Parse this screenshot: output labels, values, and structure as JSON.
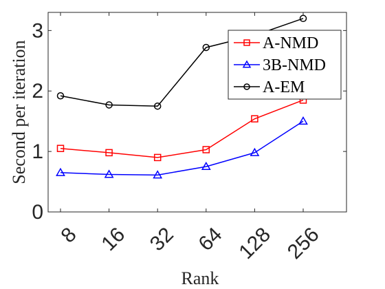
{
  "chart_data": {
    "type": "line",
    "title": "",
    "xlabel": "Rank",
    "ylabel": "Second per iteration",
    "categories": [
      "8",
      "16",
      "32",
      "64",
      "128",
      "256"
    ],
    "ylim": [
      0,
      3.3
    ],
    "yticks": [
      0,
      1,
      2,
      3
    ],
    "grid": false,
    "legend_position": "top-right",
    "series": [
      {
        "name": "A-NMD",
        "color": "#ff0000",
        "marker": "square",
        "values": [
          1.05,
          0.98,
          0.9,
          1.03,
          1.54,
          1.85
        ]
      },
      {
        "name": "3B-NMD",
        "color": "#0000ff",
        "marker": "triangle",
        "values": [
          0.65,
          0.62,
          0.61,
          0.75,
          0.98,
          1.5
        ]
      },
      {
        "name": "A-EM",
        "color": "#000000",
        "marker": "circle",
        "values": [
          1.92,
          1.77,
          1.75,
          2.72,
          2.92,
          3.2
        ]
      }
    ]
  }
}
